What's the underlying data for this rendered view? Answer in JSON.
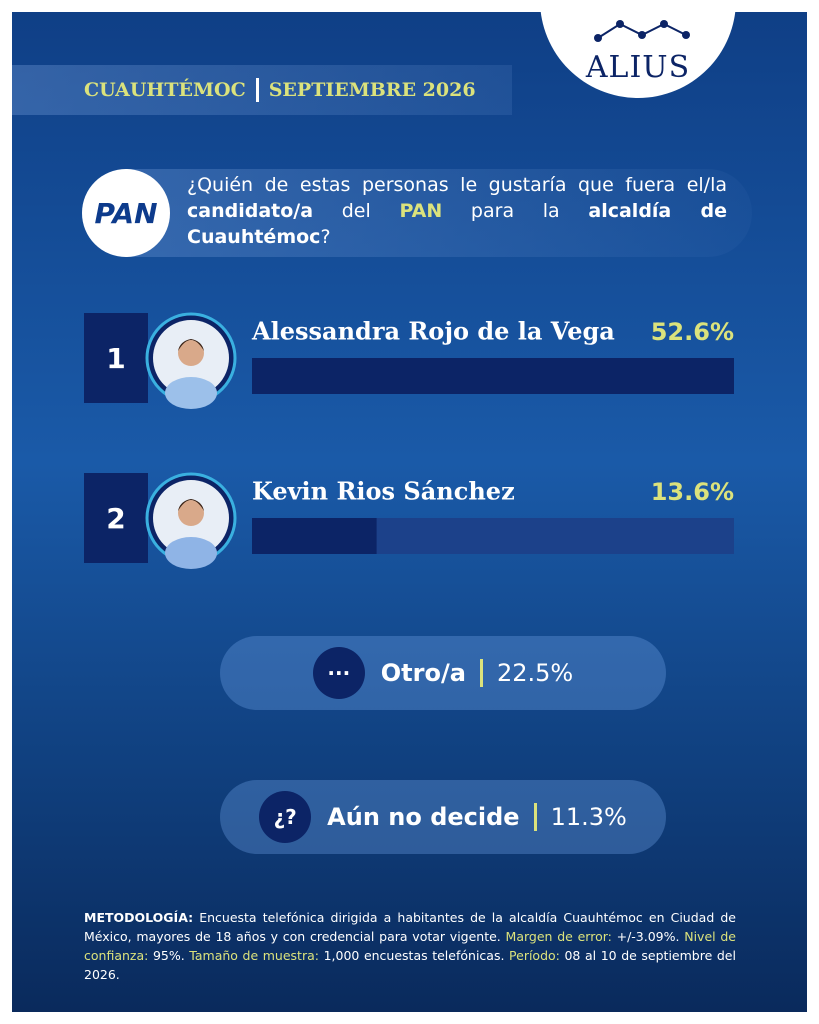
{
  "brand": "ALIUS",
  "header": {
    "place": "CUAUHTÉMOC",
    "date": "SEPTIEMBRE 2026"
  },
  "party_logo": "PAN",
  "question": [
    {
      "text": "¿Quién de estas personas le gustaría que fuera el/la ",
      "style": "plain"
    },
    {
      "text": "candidato/a",
      "style": "bold"
    },
    {
      "text": " del ",
      "style": "plain"
    },
    {
      "text": "PAN",
      "style": "accent"
    },
    {
      "text": " para la ",
      "style": "plain"
    },
    {
      "text": "alcaldía de Cuauhtémoc",
      "style": "bold"
    },
    {
      "text": "?",
      "style": "plain"
    }
  ],
  "chart_data": {
    "type": "bar",
    "ranks": [
      1,
      2
    ],
    "categories": [
      "Alessandra Rojo de la Vega",
      "Kevin Rios Sánchez"
    ],
    "values": [
      52.6,
      13.6
    ],
    "value_labels": [
      "52.6%",
      "13.6%"
    ],
    "xlim": [
      0,
      52.6
    ],
    "color": "#0c2466",
    "track_color": "#1c418a",
    "label_color": "#dbe27c"
  },
  "others": [
    {
      "icon": "···",
      "label": "Otro/a",
      "value_label": "22.5%"
    },
    {
      "icon": "¿?",
      "label": "Aún no decide",
      "value_label": "11.3%"
    }
  ],
  "methodology": [
    {
      "text": "METODOLOGÍA:",
      "style": "title"
    },
    {
      "text": " Encuesta telefónica dirigida a habitantes de la alcaldía Cuauhtémoc en Ciudad de México, mayores de 18 años y con credencial para votar vigente. ",
      "style": "plain"
    },
    {
      "text": "Margen de error:",
      "style": "label"
    },
    {
      "text": " +/-3.09%. ",
      "style": "plain"
    },
    {
      "text": "Nivel de confianza:",
      "style": "label"
    },
    {
      "text": " 95%. ",
      "style": "plain"
    },
    {
      "text": "Tamaño de muestra:",
      "style": "label"
    },
    {
      "text": " 1,000 encuestas telefónicas. ",
      "style": "plain"
    },
    {
      "text": "Período:",
      "style": "label"
    },
    {
      "text": " 08 al 10 de septiembre del 2026.",
      "style": "plain"
    }
  ]
}
